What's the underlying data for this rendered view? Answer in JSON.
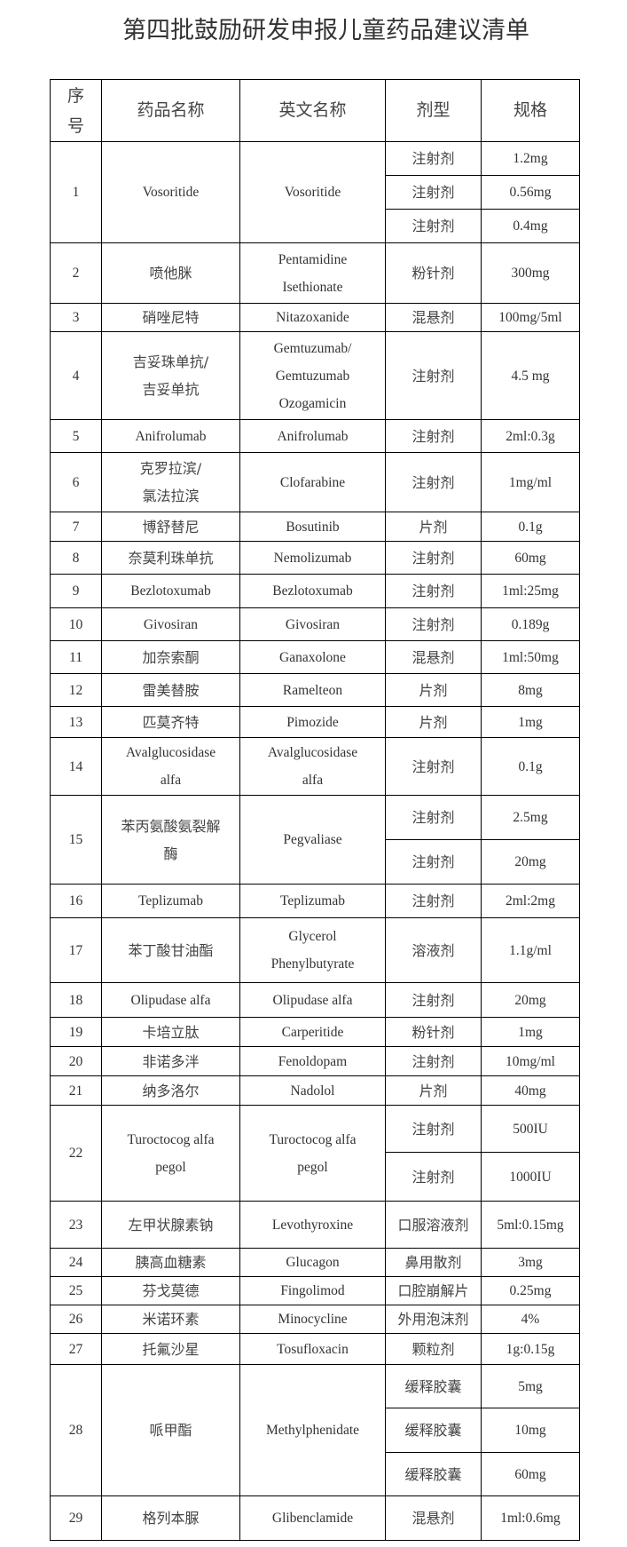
{
  "title": "第四批鼓励研发申报儿童药品建议清单",
  "headers": [
    "序\n号",
    "药品名称",
    "英文名称",
    "剂型",
    "规格"
  ],
  "rows": [
    {
      "no": "1",
      "name": "Vosoritide",
      "en": "Vosoritide",
      "items": [
        {
          "form": "注射剂",
          "spec": "1.2mg"
        },
        {
          "form": "注射剂",
          "spec": "0.56mg"
        },
        {
          "form": "注射剂",
          "spec": "0.4mg"
        }
      ]
    },
    {
      "no": "2",
      "name": "喷他脒",
      "en": "Pentamidine\nIsethionate",
      "items": [
        {
          "form": "粉针剂",
          "spec": "300mg"
        }
      ]
    },
    {
      "no": "3",
      "name": "硝唑尼特",
      "en": "Nitazoxanide",
      "items": [
        {
          "form": "混悬剂",
          "spec": "100mg/5ml"
        }
      ]
    },
    {
      "no": "4",
      "name": "吉妥珠单抗/\n吉妥单抗",
      "en": "Gemtuzumab/\nGemtuzumab\nOzogamicin",
      "items": [
        {
          "form": "注射剂",
          "spec": "4.5 mg"
        }
      ]
    },
    {
      "no": "5",
      "name": "Anifrolumab",
      "en": "Anifrolumab",
      "items": [
        {
          "form": "注射剂",
          "spec": "2ml:0.3g"
        }
      ]
    },
    {
      "no": "6",
      "name": "克罗拉滨/\n氯法拉滨",
      "en": "Clofarabine",
      "items": [
        {
          "form": "注射剂",
          "spec": "1mg/ml"
        }
      ]
    },
    {
      "no": "7",
      "name": "博舒替尼",
      "en": "Bosutinib",
      "items": [
        {
          "form": "片剂",
          "spec": "0.1g"
        }
      ]
    },
    {
      "no": "8",
      "name": "奈莫利珠单抗",
      "en": "Nemolizumab",
      "items": [
        {
          "form": "注射剂",
          "spec": "60mg"
        }
      ]
    },
    {
      "no": "9",
      "name": "Bezlotoxumab",
      "en": "Bezlotoxumab",
      "items": [
        {
          "form": "注射剂",
          "spec": "1ml:25mg"
        }
      ]
    },
    {
      "no": "10",
      "name": "Givosiran",
      "en": "Givosiran",
      "items": [
        {
          "form": "注射剂",
          "spec": "0.189g"
        }
      ]
    },
    {
      "no": "11",
      "name": "加奈索酮",
      "en": "Ganaxolone",
      "items": [
        {
          "form": "混悬剂",
          "spec": "1ml:50mg"
        }
      ]
    },
    {
      "no": "12",
      "name": "雷美替胺",
      "en": "Ramelteon",
      "items": [
        {
          "form": "片剂",
          "spec": "8mg"
        }
      ]
    },
    {
      "no": "13",
      "name": "匹莫齐特",
      "en": "Pimozide",
      "items": [
        {
          "form": "片剂",
          "spec": "1mg"
        }
      ]
    },
    {
      "no": "14",
      "name": "Avalglucosidase\nalfa",
      "en": "Avalglucosidase\nalfa",
      "items": [
        {
          "form": "注射剂",
          "spec": "0.1g"
        }
      ]
    },
    {
      "no": "15",
      "name": "苯丙氨酸氨裂解\n酶",
      "en": "Pegvaliase",
      "items": [
        {
          "form": "注射剂",
          "spec": "2.5mg"
        },
        {
          "form": "注射剂",
          "spec": "20mg"
        }
      ]
    },
    {
      "no": "16",
      "name": "Teplizumab",
      "en": "Teplizumab",
      "items": [
        {
          "form": "注射剂",
          "spec": "2ml:2mg"
        }
      ]
    },
    {
      "no": "17",
      "name": "苯丁酸甘油酯",
      "en": "Glycerol\nPhenylbutyrate",
      "items": [
        {
          "form": "溶液剂",
          "spec": "1.1g/ml"
        }
      ]
    },
    {
      "no": "18",
      "name": "Olipudase alfa",
      "en": "Olipudase alfa",
      "items": [
        {
          "form": "注射剂",
          "spec": "20mg"
        }
      ]
    },
    {
      "no": "19",
      "name": "卡培立肽",
      "en": "Carperitide",
      "items": [
        {
          "form": "粉针剂",
          "spec": "1mg"
        }
      ]
    },
    {
      "no": "20",
      "name": "非诺多泮",
      "en": "Fenoldopam",
      "items": [
        {
          "form": "注射剂",
          "spec": "10mg/ml"
        }
      ]
    },
    {
      "no": "21",
      "name": "纳多洛尔",
      "en": "Nadolol",
      "items": [
        {
          "form": "片剂",
          "spec": "40mg"
        }
      ]
    },
    {
      "no": "22",
      "name": "Turoctocog alfa\npegol",
      "en": "Turoctocog alfa\npegol",
      "items": [
        {
          "form": "注射剂",
          "spec": "500IU"
        },
        {
          "form": "注射剂",
          "spec": "1000IU"
        }
      ]
    },
    {
      "no": "23",
      "name": "左甲状腺素钠",
      "en": "Levothyroxine",
      "items": [
        {
          "form": "口服溶液剂",
          "spec": "5ml:0.15mg"
        }
      ]
    },
    {
      "no": "24",
      "name": "胰高血糖素",
      "en": "Glucagon",
      "items": [
        {
          "form": "鼻用散剂",
          "spec": "3mg"
        }
      ]
    },
    {
      "no": "25",
      "name": "芬戈莫德",
      "en": "Fingolimod",
      "items": [
        {
          "form": "口腔崩解片",
          "spec": "0.25mg"
        }
      ]
    },
    {
      "no": "26",
      "name": "米诺环素",
      "en": "Minocycline",
      "items": [
        {
          "form": "外用泡沫剂",
          "spec": "4%"
        }
      ]
    },
    {
      "no": "27",
      "name": "托氟沙星",
      "en": "Tosufloxacin",
      "items": [
        {
          "form": "颗粒剂",
          "spec": "1g:0.15g"
        }
      ]
    },
    {
      "no": "28",
      "name": "哌甲酯",
      "en": "Methylphenidate",
      "items": [
        {
          "form": "缓释胶囊",
          "spec": "5mg"
        },
        {
          "form": "缓释胶囊",
          "spec": "10mg"
        },
        {
          "form": "缓释胶囊",
          "spec": "60mg"
        }
      ]
    },
    {
      "no": "29",
      "name": "格列本脲",
      "en": "Glibenclamide",
      "items": [
        {
          "form": "混悬剂",
          "spec": "1ml:0.6mg"
        }
      ]
    }
  ]
}
